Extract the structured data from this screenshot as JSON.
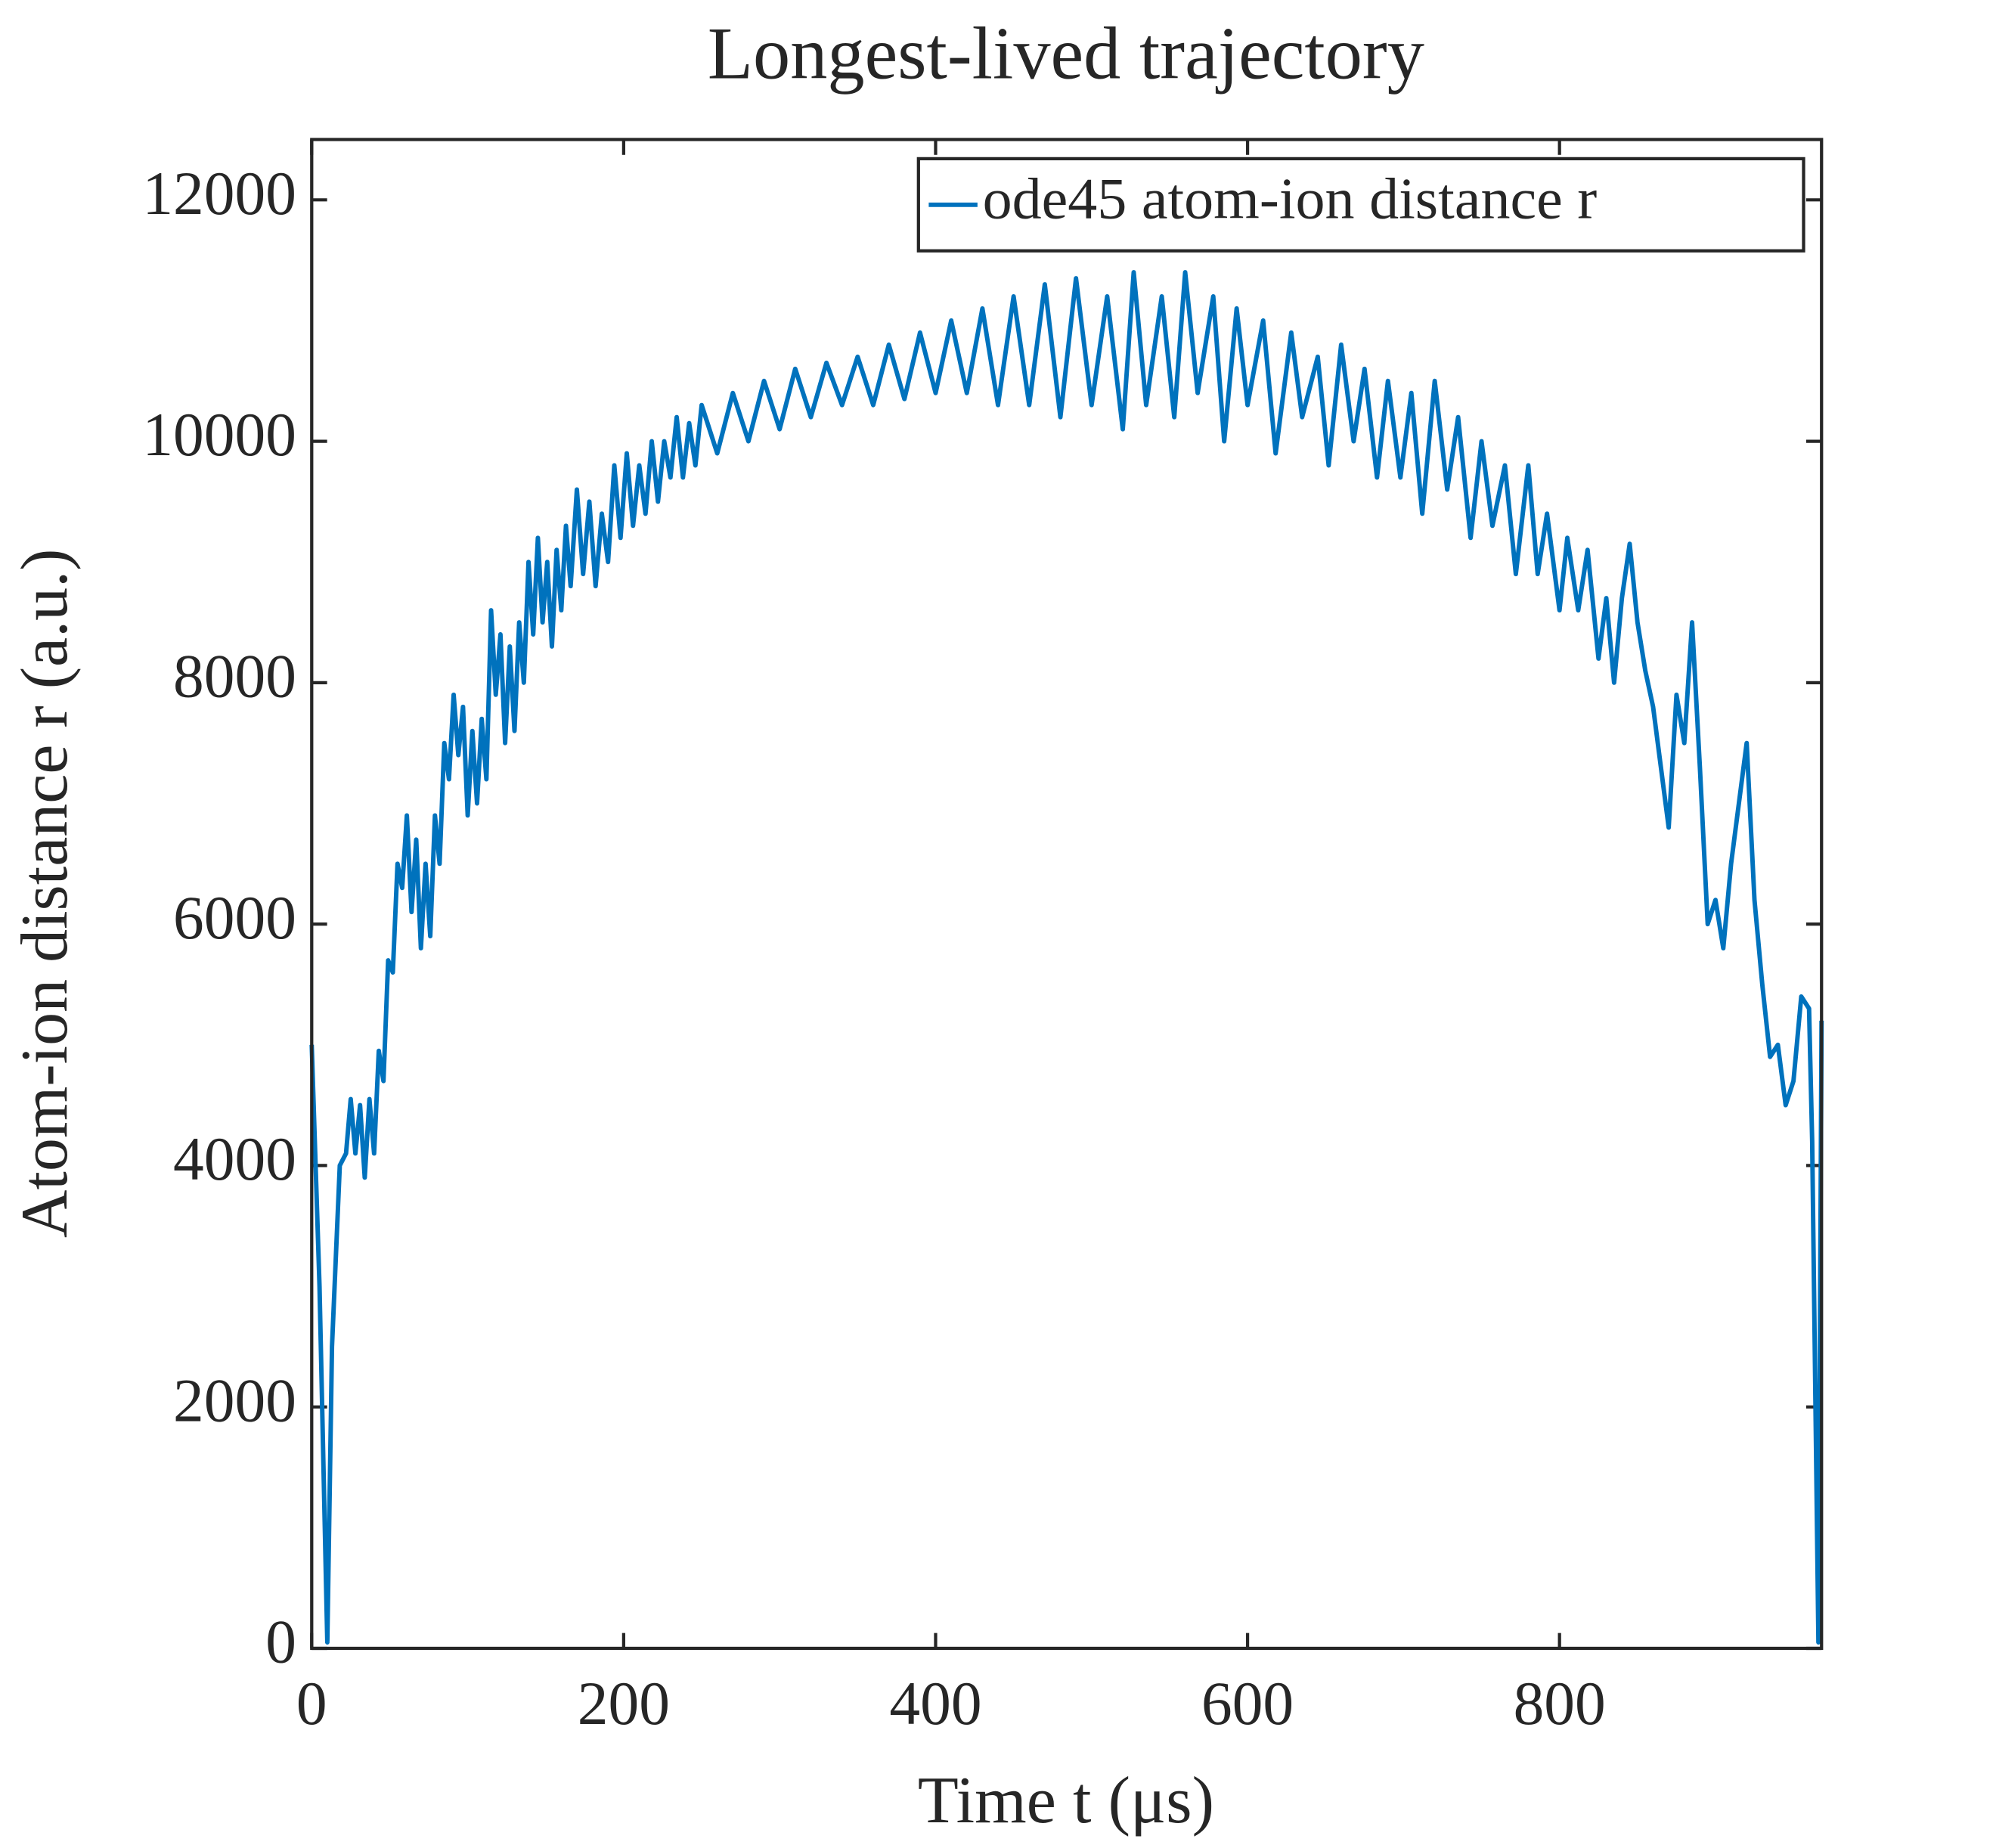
{
  "chart_data": {
    "type": "line",
    "title": "Longest-lived trajectory",
    "x_label": "Time t (μs)",
    "y_label": "Atom-ion distance r (a.u.)",
    "xlim": [
      0,
      968
    ],
    "ylim": [
      0,
      12500
    ],
    "xticks": [
      0,
      200,
      400,
      600,
      800
    ],
    "yticks": [
      0,
      2000,
      4000,
      6000,
      8000,
      10000,
      12000
    ],
    "legend": "upper right",
    "grid": false,
    "x": [
      0,
      5,
      10,
      13,
      18,
      22,
      25,
      28,
      31,
      34,
      37,
      40,
      43,
      46,
      49,
      52,
      55,
      58,
      61,
      64,
      67,
      70,
      73,
      76,
      79,
      82,
      85,
      88,
      91,
      94,
      97,
      100,
      103,
      106,
      109,
      112,
      115,
      118,
      121,
      124,
      127,
      130,
      133,
      136,
      139,
      142,
      145,
      148,
      151,
      154,
      157,
      160,
      163,
      166,
      170,
      174,
      178,
      182,
      186,
      190,
      194,
      198,
      202,
      206,
      210,
      214,
      218,
      222,
      226,
      230,
      234,
      238,
      242,
      246,
      250,
      260,
      270,
      280,
      290,
      300,
      310,
      320,
      330,
      340,
      350,
      360,
      370,
      380,
      390,
      400,
      410,
      420,
      430,
      440,
      450,
      460,
      470,
      480,
      490,
      500,
      510,
      520,
      527,
      535,
      545,
      553,
      560,
      568,
      578,
      585,
      593,
      600,
      610,
      618,
      628,
      635,
      645,
      652,
      660,
      668,
      675,
      683,
      690,
      698,
      705,
      712,
      720,
      728,
      735,
      743,
      750,
      757,
      765,
      772,
      780,
      786,
      792,
      800,
      805,
      812,
      818,
      825,
      830,
      835,
      840,
      845,
      850,
      855,
      860,
      865,
      870,
      875,
      880,
      885,
      890,
      895,
      900,
      905,
      910,
      915,
      920,
      925,
      930,
      935,
      940,
      945,
      950,
      955,
      960,
      962,
      966,
      968
    ],
    "series": [
      {
        "name": "ode45 atom-ion distance r",
        "color": "#0072bd",
        "values": [
          5000,
          3000,
          50,
          2500,
          4000,
          4100,
          4550,
          4100,
          4500,
          3900,
          4550,
          4100,
          4950,
          4700,
          5700,
          5600,
          6500,
          6300,
          6900,
          6100,
          6700,
          5800,
          6500,
          5900,
          6900,
          6500,
          7500,
          7200,
          7900,
          7400,
          7800,
          6900,
          7600,
          7000,
          7700,
          7200,
          8600,
          7900,
          8400,
          7500,
          8300,
          7600,
          8500,
          8000,
          9000,
          8400,
          9200,
          8500,
          9000,
          8300,
          9100,
          8600,
          9300,
          8800,
          9600,
          8900,
          9500,
          8800,
          9400,
          9000,
          9800,
          9200,
          9900,
          9300,
          9800,
          9400,
          10000,
          9500,
          10000,
          9700,
          10200,
          9700,
          10150,
          9800,
          10300,
          9900,
          10400,
          10000,
          10500,
          10100,
          10600,
          10200,
          10650,
          10300,
          10700,
          10300,
          10800,
          10350,
          10900,
          10400,
          11000,
          10400,
          11100,
          10300,
          11200,
          10300,
          11300,
          10200,
          11350,
          10300,
          11200,
          10100,
          11400,
          10300,
          11200,
          10200,
          11400,
          10400,
          11200,
          10000,
          11100,
          10300,
          11000,
          9900,
          10900,
          10200,
          10700,
          9800,
          10800,
          10000,
          10600,
          9700,
          10500,
          9700,
          10400,
          9400,
          10500,
          9600,
          10200,
          9200,
          10000,
          9300,
          9800,
          8900,
          9800,
          8900,
          9400,
          8600,
          9200,
          8600,
          9100,
          8200,
          8700,
          8000,
          8700,
          9150,
          8500,
          8100,
          7800,
          7300,
          6800,
          7900,
          7500,
          8500,
          7300,
          6000,
          6200,
          5800,
          6500,
          7000,
          7500,
          6200,
          5500,
          4900,
          5000,
          4500,
          4700,
          5400,
          5300,
          4200,
          50,
          5200
        ]
      }
    ]
  }
}
